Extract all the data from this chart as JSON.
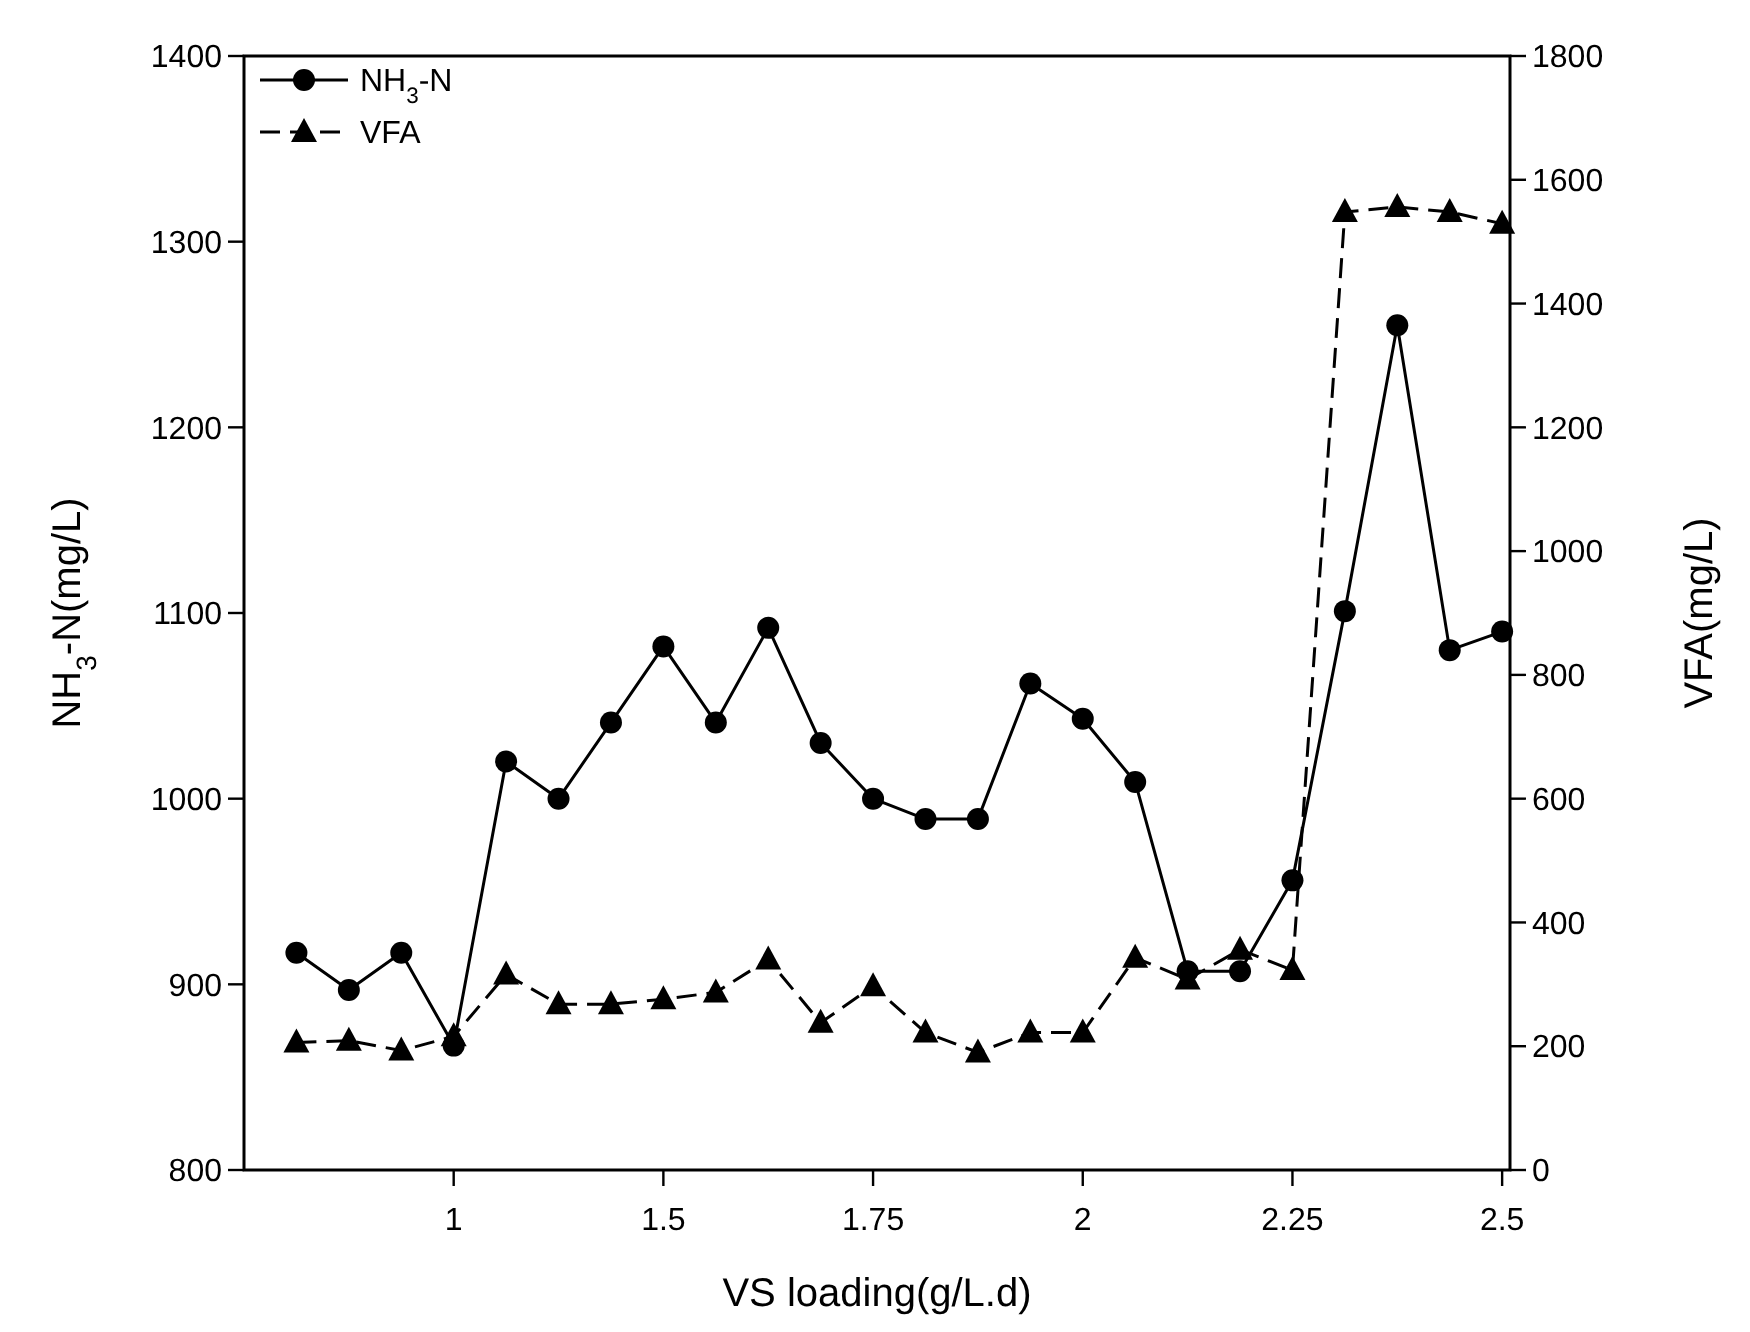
{
  "chart_data": {
    "type": "line",
    "xlabel": "VS loading(g/L.d)",
    "ylabel": "NH$_{3}$-N(mg/L)",
    "y2label": "VFA(mg/L)",
    "categories": [
      null,
      null,
      null,
      "1",
      null,
      null,
      null,
      "1.5",
      null,
      null,
      null,
      "1.75",
      null,
      null,
      null,
      "2",
      null,
      null,
      null,
      "2.25",
      null,
      null,
      null,
      "2.5"
    ],
    "series": [
      {
        "name": "NH$_{3}$-N",
        "color": "#000000",
        "marker": "circle",
        "line_style": "solid",
        "values": [
          917,
          897,
          917,
          867,
          1020,
          1000,
          1041,
          1082,
          1041,
          1092,
          1030,
          1000,
          989,
          989,
          1062,
          1043,
          1009,
          907,
          907,
          956,
          1101,
          1255,
          1080,
          1090
        ]
      },
      {
        "name": "VFA",
        "color": "#000000",
        "marker": "triangle",
        "line_style": "dashed",
        "axis": "y2",
        "values": [
          206,
          209,
          193,
          216,
          316,
          268,
          268,
          276,
          287,
          340,
          238,
          297,
          222,
          190,
          222,
          222,
          343,
          308,
          356,
          323,
          1548,
          1556,
          1548,
          1529
        ]
      }
    ],
    "ylim": [
      800,
      1400
    ],
    "yticks": [
      800,
      900,
      1000,
      1100,
      1200,
      1300,
      1400
    ],
    "y2lim": [
      0,
      1800
    ],
    "y2ticks": [
      0,
      200,
      400,
      600,
      800,
      1000,
      1200,
      1400,
      1600,
      1800
    ],
    "legend": "top left",
    "grid": false
  }
}
